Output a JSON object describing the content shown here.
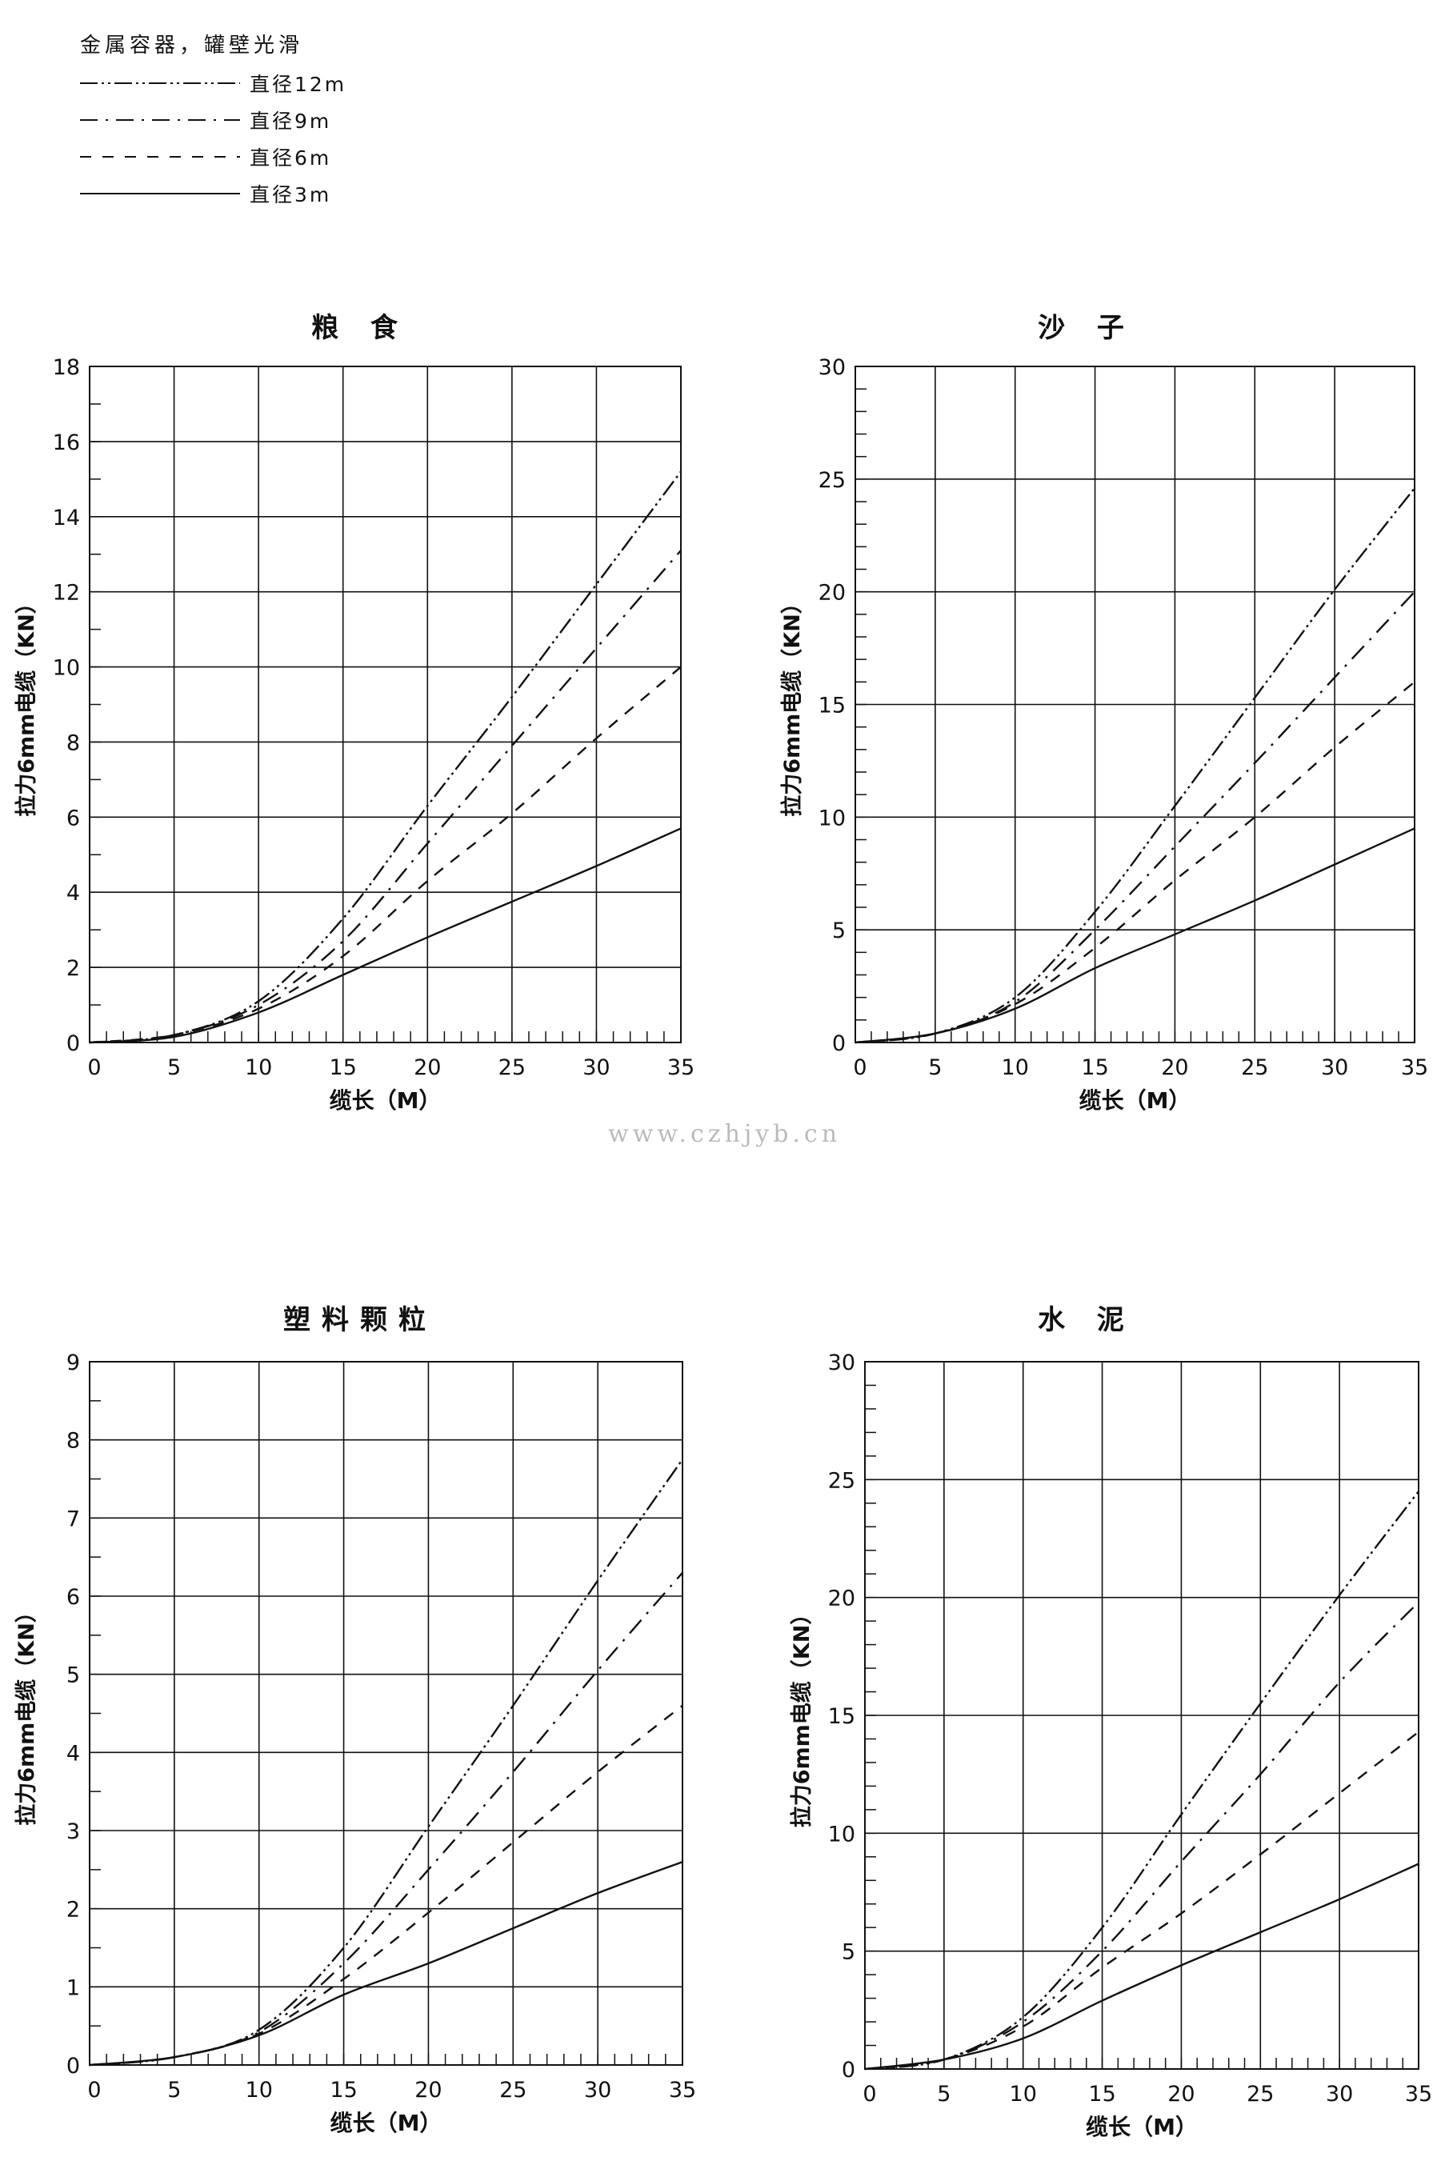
{
  "legend": {
    "title": "金属容器，罐壁光滑",
    "items": [
      {
        "label": "直径12m",
        "style": "dash-dot-dot"
      },
      {
        "label": "直径9m",
        "style": "dash-dot"
      },
      {
        "label": "直径6m",
        "style": "dashed"
      },
      {
        "label": "直径3m",
        "style": "solid"
      }
    ]
  },
  "watermark": "www.czhjyb.cn",
  "chart_data": [
    {
      "type": "line",
      "title": "粮 食",
      "xlabel": "缆长（M）",
      "ylabel": "拉力6mm电缆（KN）",
      "xlim": [
        0,
        35
      ],
      "ylim": [
        0,
        18
      ],
      "grid": true,
      "x_ticks": [
        0,
        5,
        10,
        15,
        20,
        25,
        30,
        35
      ],
      "y_ticks": [
        0,
        2,
        4,
        6,
        8,
        10,
        12,
        14,
        16,
        18
      ],
      "x": [
        0,
        5,
        10,
        15,
        20,
        25,
        30,
        35
      ],
      "series": [
        {
          "name": "直径12m",
          "values": [
            0,
            0.2,
            1.1,
            3.3,
            6.3,
            9.2,
            12.2,
            15.2
          ]
        },
        {
          "name": "直径9m",
          "values": [
            0,
            0.2,
            1.0,
            2.7,
            5.3,
            7.9,
            10.5,
            13.1
          ]
        },
        {
          "name": "直径6m",
          "values": [
            0,
            0.2,
            0.9,
            2.3,
            4.3,
            6.1,
            8.1,
            10.0
          ]
        },
        {
          "name": "直径3m",
          "values": [
            0,
            0.15,
            0.8,
            1.8,
            2.8,
            3.75,
            4.7,
            5.7
          ]
        }
      ]
    },
    {
      "type": "line",
      "title": "沙 子",
      "xlabel": "缆长（M）",
      "ylabel": "拉力6mm电缆（KN）",
      "xlim": [
        0,
        35
      ],
      "ylim": [
        0,
        30
      ],
      "grid": true,
      "x_ticks": [
        0,
        5,
        10,
        15,
        20,
        25,
        30,
        35
      ],
      "y_ticks": [
        0,
        5,
        10,
        15,
        20,
        25,
        30
      ],
      "x": [
        0,
        5,
        10,
        15,
        20,
        25,
        30,
        35
      ],
      "series": [
        {
          "name": "直径12m",
          "values": [
            0,
            0.4,
            2.0,
            5.8,
            10.5,
            15.3,
            20.1,
            24.6
          ]
        },
        {
          "name": "直径9m",
          "values": [
            0,
            0.4,
            1.8,
            5.0,
            8.7,
            12.4,
            16.2,
            20.0
          ]
        },
        {
          "name": "直径6m",
          "values": [
            0,
            0.4,
            1.7,
            4.2,
            7.2,
            10.0,
            13.1,
            16.0
          ]
        },
        {
          "name": "直径3m",
          "values": [
            0,
            0.4,
            1.5,
            3.3,
            4.8,
            6.3,
            7.9,
            9.5
          ]
        }
      ]
    },
    {
      "type": "line",
      "title": "塑料颗粒",
      "xlabel": "缆长（M）",
      "ylabel": "拉力6mm电缆（KN）",
      "xlim": [
        0,
        35
      ],
      "ylim": [
        0,
        9
      ],
      "grid": true,
      "x_ticks": [
        0,
        5,
        10,
        15,
        20,
        25,
        30,
        35
      ],
      "y_ticks": [
        0,
        1,
        2,
        3,
        4,
        5,
        6,
        7,
        8,
        9
      ],
      "x": [
        0,
        5,
        10,
        15,
        20,
        25,
        30,
        35
      ],
      "series": [
        {
          "name": "直径12m",
          "values": [
            0,
            0.1,
            0.45,
            1.5,
            3.05,
            4.6,
            6.2,
            7.75
          ]
        },
        {
          "name": "直径9m",
          "values": [
            0,
            0.1,
            0.42,
            1.3,
            2.5,
            3.75,
            5.05,
            6.3
          ]
        },
        {
          "name": "直径6m",
          "values": [
            0,
            0.1,
            0.4,
            1.1,
            1.95,
            2.85,
            3.75,
            4.6
          ]
        },
        {
          "name": "直径3m",
          "values": [
            0,
            0.1,
            0.38,
            0.9,
            1.3,
            1.75,
            2.2,
            2.6
          ]
        }
      ]
    },
    {
      "type": "line",
      "title": "水 泥",
      "xlabel": "缆长（M）",
      "ylabel": "拉力6mm电缆（KN）",
      "xlim": [
        0,
        35
      ],
      "ylim": [
        0,
        30
      ],
      "grid": true,
      "x_ticks": [
        0,
        5,
        10,
        15,
        20,
        25,
        30,
        35
      ],
      "y_ticks": [
        0,
        5,
        10,
        15,
        20,
        25,
        30
      ],
      "x": [
        0,
        5,
        10,
        15,
        20,
        25,
        30,
        35
      ],
      "series": [
        {
          "name": "直径12m",
          "values": [
            0,
            0.4,
            2.2,
            6.0,
            10.8,
            15.5,
            20.1,
            24.5
          ]
        },
        {
          "name": "直径9m",
          "values": [
            0,
            0.4,
            2.0,
            5.0,
            8.8,
            12.5,
            16.4,
            19.8
          ]
        },
        {
          "name": "直径6m",
          "values": [
            0,
            0.4,
            1.8,
            4.3,
            6.6,
            9.1,
            11.7,
            14.3
          ]
        },
        {
          "name": "直径3m",
          "values": [
            0,
            0.4,
            1.3,
            2.9,
            4.4,
            5.8,
            7.2,
            8.7
          ]
        }
      ]
    }
  ]
}
